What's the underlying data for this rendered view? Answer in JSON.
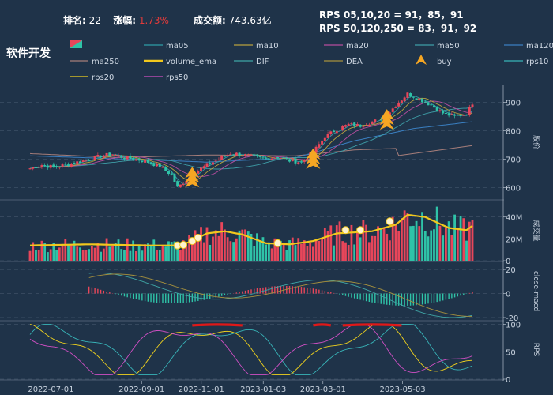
{
  "header": {
    "rank_label": "排名:",
    "rank_value": "22",
    "change_label": "涨幅:",
    "change_value": "1.73%",
    "turnover_label": "成交额:",
    "turnover_value": "743.63亿",
    "rps_line1": "RPS 05,10,20 = 91，85，91",
    "rps_line2": "RPS 50,120,250 = 83，91，92",
    "sector_name": "软件开发"
  },
  "colors": {
    "background": "#1f3349",
    "up": "#e8465a",
    "down": "#2fc3a8",
    "ma05": "#2f9fa7",
    "ma10": "#b9a23f",
    "ma20": "#b64d9e",
    "ma50": "#3e9ea7",
    "ma120": "#3a7fc1",
    "ma250": "#a77e7a",
    "volume_ema": "#f2c81d",
    "DIF": "#3fa6a6",
    "DEA": "#a8923d",
    "buy": "#f5a623",
    "rps10": "#38b4b8",
    "rps20": "#f2d31d",
    "rps50": "#d04fc4",
    "rps_high": "#e01818"
  },
  "legend": [
    {
      "name": "",
      "icon": "candle-icon"
    },
    {
      "name": "ma05",
      "icon": "line-icon"
    },
    {
      "name": "ma10",
      "icon": "line-icon"
    },
    {
      "name": "ma20",
      "icon": "line-icon"
    },
    {
      "name": "ma50",
      "icon": "line-icon"
    },
    {
      "name": "ma120",
      "icon": "line-icon"
    },
    {
      "name": "ma250",
      "icon": "line-icon"
    },
    {
      "name": "volume_ema",
      "icon": "thick-line-icon"
    },
    {
      "name": "DIF",
      "icon": "line-icon"
    },
    {
      "name": "DEA",
      "icon": "line-icon"
    },
    {
      "name": "buy",
      "icon": "triangle-icon"
    },
    {
      "name": "rps10",
      "icon": "line-icon"
    },
    {
      "name": "rps20",
      "icon": "line-icon"
    },
    {
      "name": "rps50",
      "icon": "line-icon"
    }
  ],
  "chart_data": {
    "type": "line",
    "x_ticks": [
      "2022-07-01",
      "2022-09-01",
      "2022-11-01",
      "2023-01-03",
      "2023-03-01",
      "2023-05-03"
    ],
    "panels": [
      {
        "name": "price",
        "ylabel": "股价",
        "yticks": [
          600,
          700,
          800,
          900
        ],
        "ylim": [
          560,
          960
        ],
        "ohlc_points": [
          [
            0,
            668
          ],
          [
            4,
            680
          ],
          [
            8,
            672
          ],
          [
            12,
            680
          ],
          [
            16,
            690
          ],
          [
            20,
            700
          ],
          [
            24,
            712
          ],
          [
            28,
            718
          ],
          [
            32,
            705
          ],
          [
            36,
            700
          ],
          [
            40,
            690
          ],
          [
            44,
            675
          ],
          [
            48,
            645
          ],
          [
            50,
            600
          ],
          [
            52,
            618
          ],
          [
            56,
            655
          ],
          [
            60,
            680
          ],
          [
            64,
            700
          ],
          [
            68,
            722
          ],
          [
            72,
            716
          ],
          [
            76,
            708
          ],
          [
            80,
            700
          ],
          [
            84,
            710
          ],
          [
            88,
            695
          ],
          [
            92,
            690
          ],
          [
            96,
            725
          ],
          [
            100,
            780
          ],
          [
            104,
            805
          ],
          [
            108,
            822
          ],
          [
            112,
            818
          ],
          [
            116,
            832
          ],
          [
            120,
            845
          ],
          [
            124,
            890
          ],
          [
            128,
            930
          ],
          [
            132,
            912
          ],
          [
            136,
            890
          ],
          [
            140,
            862
          ],
          [
            144,
            850
          ],
          [
            148,
            860
          ],
          [
            150,
            898
          ]
        ],
        "ma250": [
          [
            0,
            720
          ],
          [
            30,
            706
          ],
          [
            60,
            715
          ],
          [
            90,
            712
          ],
          [
            110,
            733
          ],
          [
            124,
            738
          ],
          [
            125,
            713
          ],
          [
            150,
            748
          ]
        ],
        "ma120": [
          [
            0,
            712
          ],
          [
            40,
            698
          ],
          [
            60,
            690
          ],
          [
            90,
            705
          ],
          [
            110,
            765
          ],
          [
            130,
            808
          ],
          [
            150,
            832
          ]
        ],
        "buy_signals": [
          [
            55,
            640
          ],
          [
            96,
            705
          ],
          [
            121,
            843
          ]
        ]
      },
      {
        "name": "volume",
        "ylabel": "成交量",
        "yticks": [
          0,
          "20M",
          "40M"
        ],
        "ylim": [
          0,
          55
        ],
        "volume_ema": [
          [
            0,
            14
          ],
          [
            20,
            15
          ],
          [
            40,
            14
          ],
          [
            50,
            14
          ],
          [
            54,
            17
          ],
          [
            60,
            25
          ],
          [
            66,
            27
          ],
          [
            72,
            24
          ],
          [
            80,
            16
          ],
          [
            88,
            15
          ],
          [
            96,
            18
          ],
          [
            104,
            25
          ],
          [
            116,
            27
          ],
          [
            124,
            33
          ],
          [
            128,
            42
          ],
          [
            134,
            40
          ],
          [
            142,
            30
          ],
          [
            148,
            28
          ],
          [
            150,
            32
          ]
        ],
        "markers": [
          [
            50,
            14
          ],
          [
            52,
            14.5
          ],
          [
            55,
            18
          ],
          [
            57,
            21
          ],
          [
            84,
            16
          ],
          [
            107,
            28
          ],
          [
            112,
            28
          ],
          [
            122,
            36
          ]
        ]
      },
      {
        "name": "macd",
        "ylabel": "close-macd",
        "yticks": [
          -20,
          0,
          20
        ],
        "ylim": [
          -22,
          26
        ]
      },
      {
        "name": "rps",
        "ylabel": "RPS",
        "yticks": [
          0,
          50,
          100
        ],
        "ylim": [
          0,
          108
        ],
        "rps_high_segments": [
          [
            55,
            72
          ],
          [
            96,
            102
          ],
          [
            106,
            126
          ]
        ]
      }
    ]
  }
}
